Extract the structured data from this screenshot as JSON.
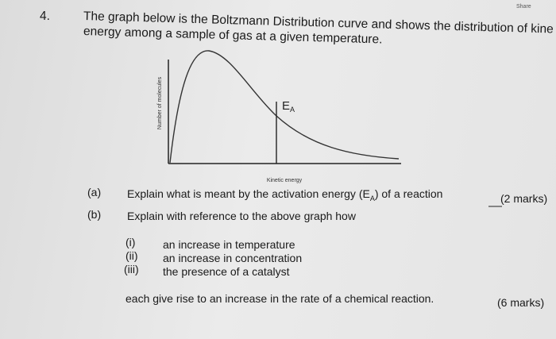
{
  "header": {
    "share": "Share"
  },
  "question": {
    "number": "4.",
    "intro_lines": [
      "The graph below is the Boltzmann Distribution curve and shows the distribution of kine",
      "energy among a sample of gas at a given temperature."
    ]
  },
  "graph": {
    "y_label": "Number of molecules",
    "x_label": "Kinetic energy",
    "ea_label": {
      "main": "E",
      "sub": "A"
    }
  },
  "parts": [
    {
      "label": "(a)",
      "text": {
        "before": "Explain what is meant by the activation energy (E",
        "sub": "A",
        "after": ") of a reaction"
      },
      "marks": "(2 marks)"
    },
    {
      "label": "(b)",
      "text": "Explain with reference to the above graph how",
      "items": [
        {
          "label": "(i)",
          "text": "an increase in temperature"
        },
        {
          "label": "(ii)",
          "text": "an increase in concentration"
        },
        {
          "label": "(iii)",
          "text": "the presence of a catalyst"
        }
      ],
      "closing": "each give rise to an increase in the rate of a chemical reaction.",
      "marks": "(6 marks)"
    }
  ]
}
